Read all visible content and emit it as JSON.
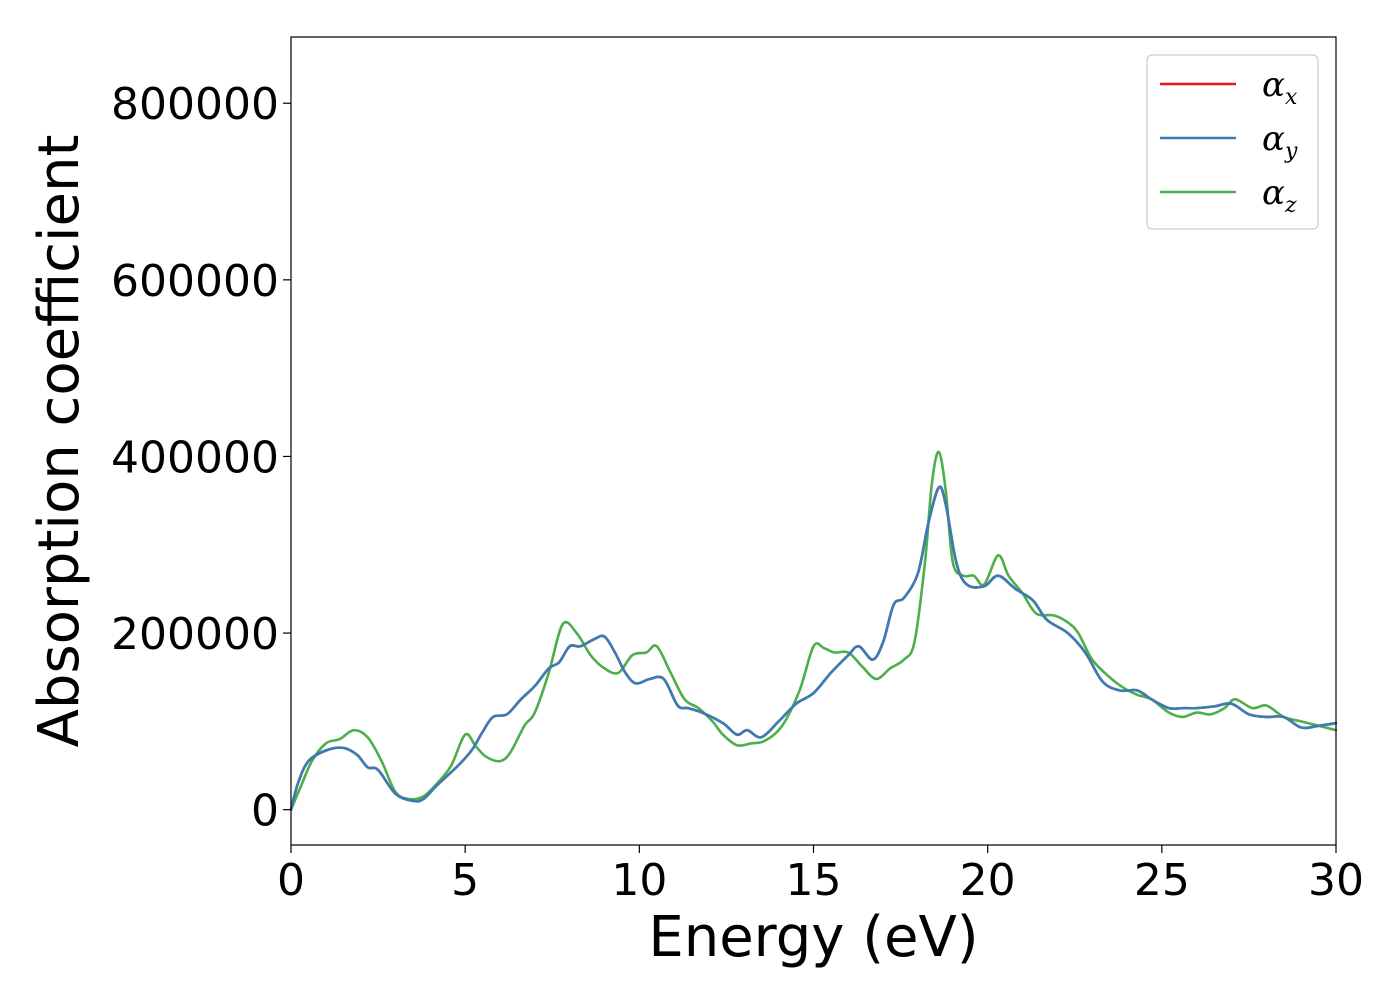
{
  "chart_data": {
    "type": "line",
    "xlabel": "Energy (eV)",
    "ylabel": "Absorption coefficient",
    "xlim": [
      0,
      30
    ],
    "ylim": [
      -40000,
      875000
    ],
    "xticks": [
      0,
      5,
      10,
      15,
      20,
      25,
      30
    ],
    "xtick_labels": [
      "0",
      "5",
      "10",
      "15",
      "20",
      "25",
      "30"
    ],
    "yticks": [
      0,
      200000,
      400000,
      600000,
      800000
    ],
    "ytick_labels": [
      "0",
      "200000",
      "400000",
      "600000",
      "800000"
    ],
    "grid": false,
    "legend_position": "top-right",
    "series": [
      {
        "name": "α",
        "name_sub": "x",
        "color": "#e41a1c",
        "x": [
          0,
          0.2,
          0.5,
          1.0,
          1.5,
          1.9,
          2.2,
          2.5,
          3.0,
          3.5,
          3.8,
          4.2,
          4.8,
          5.2,
          5.5,
          5.8,
          6.2,
          6.6,
          7.0,
          7.4,
          7.7,
          8.0,
          8.3,
          8.7,
          9.0,
          9.3,
          9.6,
          9.9,
          10.3,
          10.7,
          11.1,
          11.4,
          11.8,
          12.4,
          12.8,
          13.1,
          13.5,
          14.0,
          14.5,
          15.0,
          15.5,
          16.0,
          16.3,
          16.7,
          17.0,
          17.3,
          17.6,
          18.0,
          18.3,
          18.6,
          18.8,
          19.1,
          19.4,
          19.9,
          20.3,
          20.8,
          21.3,
          21.7,
          22.3,
          22.8,
          23.3,
          23.8,
          24.3,
          24.7,
          25.2,
          25.6,
          26.0,
          26.5,
          27.0,
          27.5,
          28.0,
          28.5,
          29.0,
          29.5,
          30.0
        ],
        "values": [
          0,
          30000,
          55000,
          67000,
          70000,
          62000,
          48000,
          45000,
          18000,
          10000,
          12000,
          28000,
          50000,
          68000,
          88000,
          105000,
          108000,
          125000,
          140000,
          160000,
          167000,
          185000,
          185000,
          193000,
          196000,
          178000,
          155000,
          143000,
          148000,
          148000,
          118000,
          115000,
          110000,
          98000,
          85000,
          90000,
          82000,
          100000,
          120000,
          132000,
          155000,
          175000,
          185000,
          170000,
          190000,
          232000,
          240000,
          268000,
          325000,
          365000,
          345000,
          280000,
          255000,
          253000,
          265000,
          250000,
          237000,
          215000,
          200000,
          178000,
          145000,
          135000,
          135000,
          125000,
          115000,
          115000,
          115000,
          117000,
          120000,
          108000,
          105000,
          105000,
          93000,
          95000,
          98000
        ]
      },
      {
        "name": "α",
        "name_sub": "y",
        "color": "#377eb8",
        "x": [
          0,
          0.2,
          0.5,
          1.0,
          1.5,
          1.9,
          2.2,
          2.5,
          3.0,
          3.5,
          3.8,
          4.2,
          4.8,
          5.2,
          5.5,
          5.8,
          6.2,
          6.6,
          7.0,
          7.4,
          7.7,
          8.0,
          8.3,
          8.7,
          9.0,
          9.3,
          9.6,
          9.9,
          10.3,
          10.7,
          11.1,
          11.4,
          11.8,
          12.4,
          12.8,
          13.1,
          13.5,
          14.0,
          14.5,
          15.0,
          15.5,
          16.0,
          16.3,
          16.7,
          17.0,
          17.3,
          17.6,
          18.0,
          18.3,
          18.6,
          18.8,
          19.1,
          19.4,
          19.9,
          20.3,
          20.8,
          21.3,
          21.7,
          22.3,
          22.8,
          23.3,
          23.8,
          24.3,
          24.7,
          25.2,
          25.6,
          26.0,
          26.5,
          27.0,
          27.5,
          28.0,
          28.5,
          29.0,
          29.5,
          30.0
        ],
        "values": [
          0,
          30000,
          55000,
          67000,
          70000,
          62000,
          48000,
          45000,
          18000,
          10000,
          12000,
          28000,
          50000,
          68000,
          88000,
          105000,
          108000,
          125000,
          140000,
          160000,
          167000,
          185000,
          185000,
          193000,
          196000,
          178000,
          155000,
          143000,
          148000,
          148000,
          118000,
          115000,
          110000,
          98000,
          85000,
          90000,
          82000,
          100000,
          120000,
          132000,
          155000,
          175000,
          185000,
          170000,
          190000,
          232000,
          240000,
          268000,
          325000,
          365000,
          345000,
          280000,
          255000,
          253000,
          265000,
          250000,
          237000,
          215000,
          200000,
          178000,
          145000,
          135000,
          135000,
          125000,
          115000,
          115000,
          115000,
          117000,
          120000,
          108000,
          105000,
          105000,
          93000,
          95000,
          98000
        ]
      },
      {
        "name": "α",
        "name_sub": "z",
        "color": "#4daf4a",
        "x": [
          0,
          0.3,
          0.6,
          1.0,
          1.4,
          1.8,
          2.2,
          2.6,
          3.0,
          3.4,
          3.8,
          4.2,
          4.6,
          5.0,
          5.3,
          5.6,
          6.0,
          6.3,
          6.7,
          7.0,
          7.4,
          7.8,
          8.2,
          8.6,
          9.0,
          9.4,
          9.8,
          10.2,
          10.5,
          10.9,
          11.3,
          11.7,
          12.1,
          12.4,
          12.8,
          13.2,
          13.6,
          14.1,
          14.6,
          15.0,
          15.3,
          15.6,
          16.0,
          16.4,
          16.8,
          17.2,
          17.6,
          17.9,
          18.2,
          18.4,
          18.6,
          18.8,
          19.0,
          19.3,
          19.6,
          19.9,
          20.3,
          20.6,
          21.0,
          21.4,
          21.9,
          22.3,
          22.6,
          23.0,
          23.5,
          23.9,
          24.3,
          24.7,
          25.2,
          25.6,
          26.0,
          26.4,
          26.8,
          27.1,
          27.6,
          28.0,
          28.5,
          29.0,
          29.5,
          30.0
        ],
        "values": [
          0,
          28000,
          55000,
          75000,
          80000,
          90000,
          82000,
          55000,
          20000,
          12000,
          15000,
          30000,
          50000,
          85000,
          72000,
          60000,
          55000,
          65000,
          95000,
          110000,
          155000,
          210000,
          200000,
          175000,
          160000,
          155000,
          175000,
          178000,
          185000,
          155000,
          125000,
          115000,
          100000,
          85000,
          73000,
          75000,
          78000,
          95000,
          135000,
          185000,
          183000,
          178000,
          178000,
          162000,
          148000,
          160000,
          170000,
          190000,
          280000,
          370000,
          405000,
          360000,
          280000,
          265000,
          265000,
          255000,
          288000,
          265000,
          245000,
          222000,
          220000,
          212000,
          200000,
          170000,
          150000,
          138000,
          130000,
          125000,
          110000,
          105000,
          110000,
          108000,
          115000,
          125000,
          115000,
          118000,
          105000,
          100000,
          95000,
          90000
        ]
      }
    ]
  }
}
